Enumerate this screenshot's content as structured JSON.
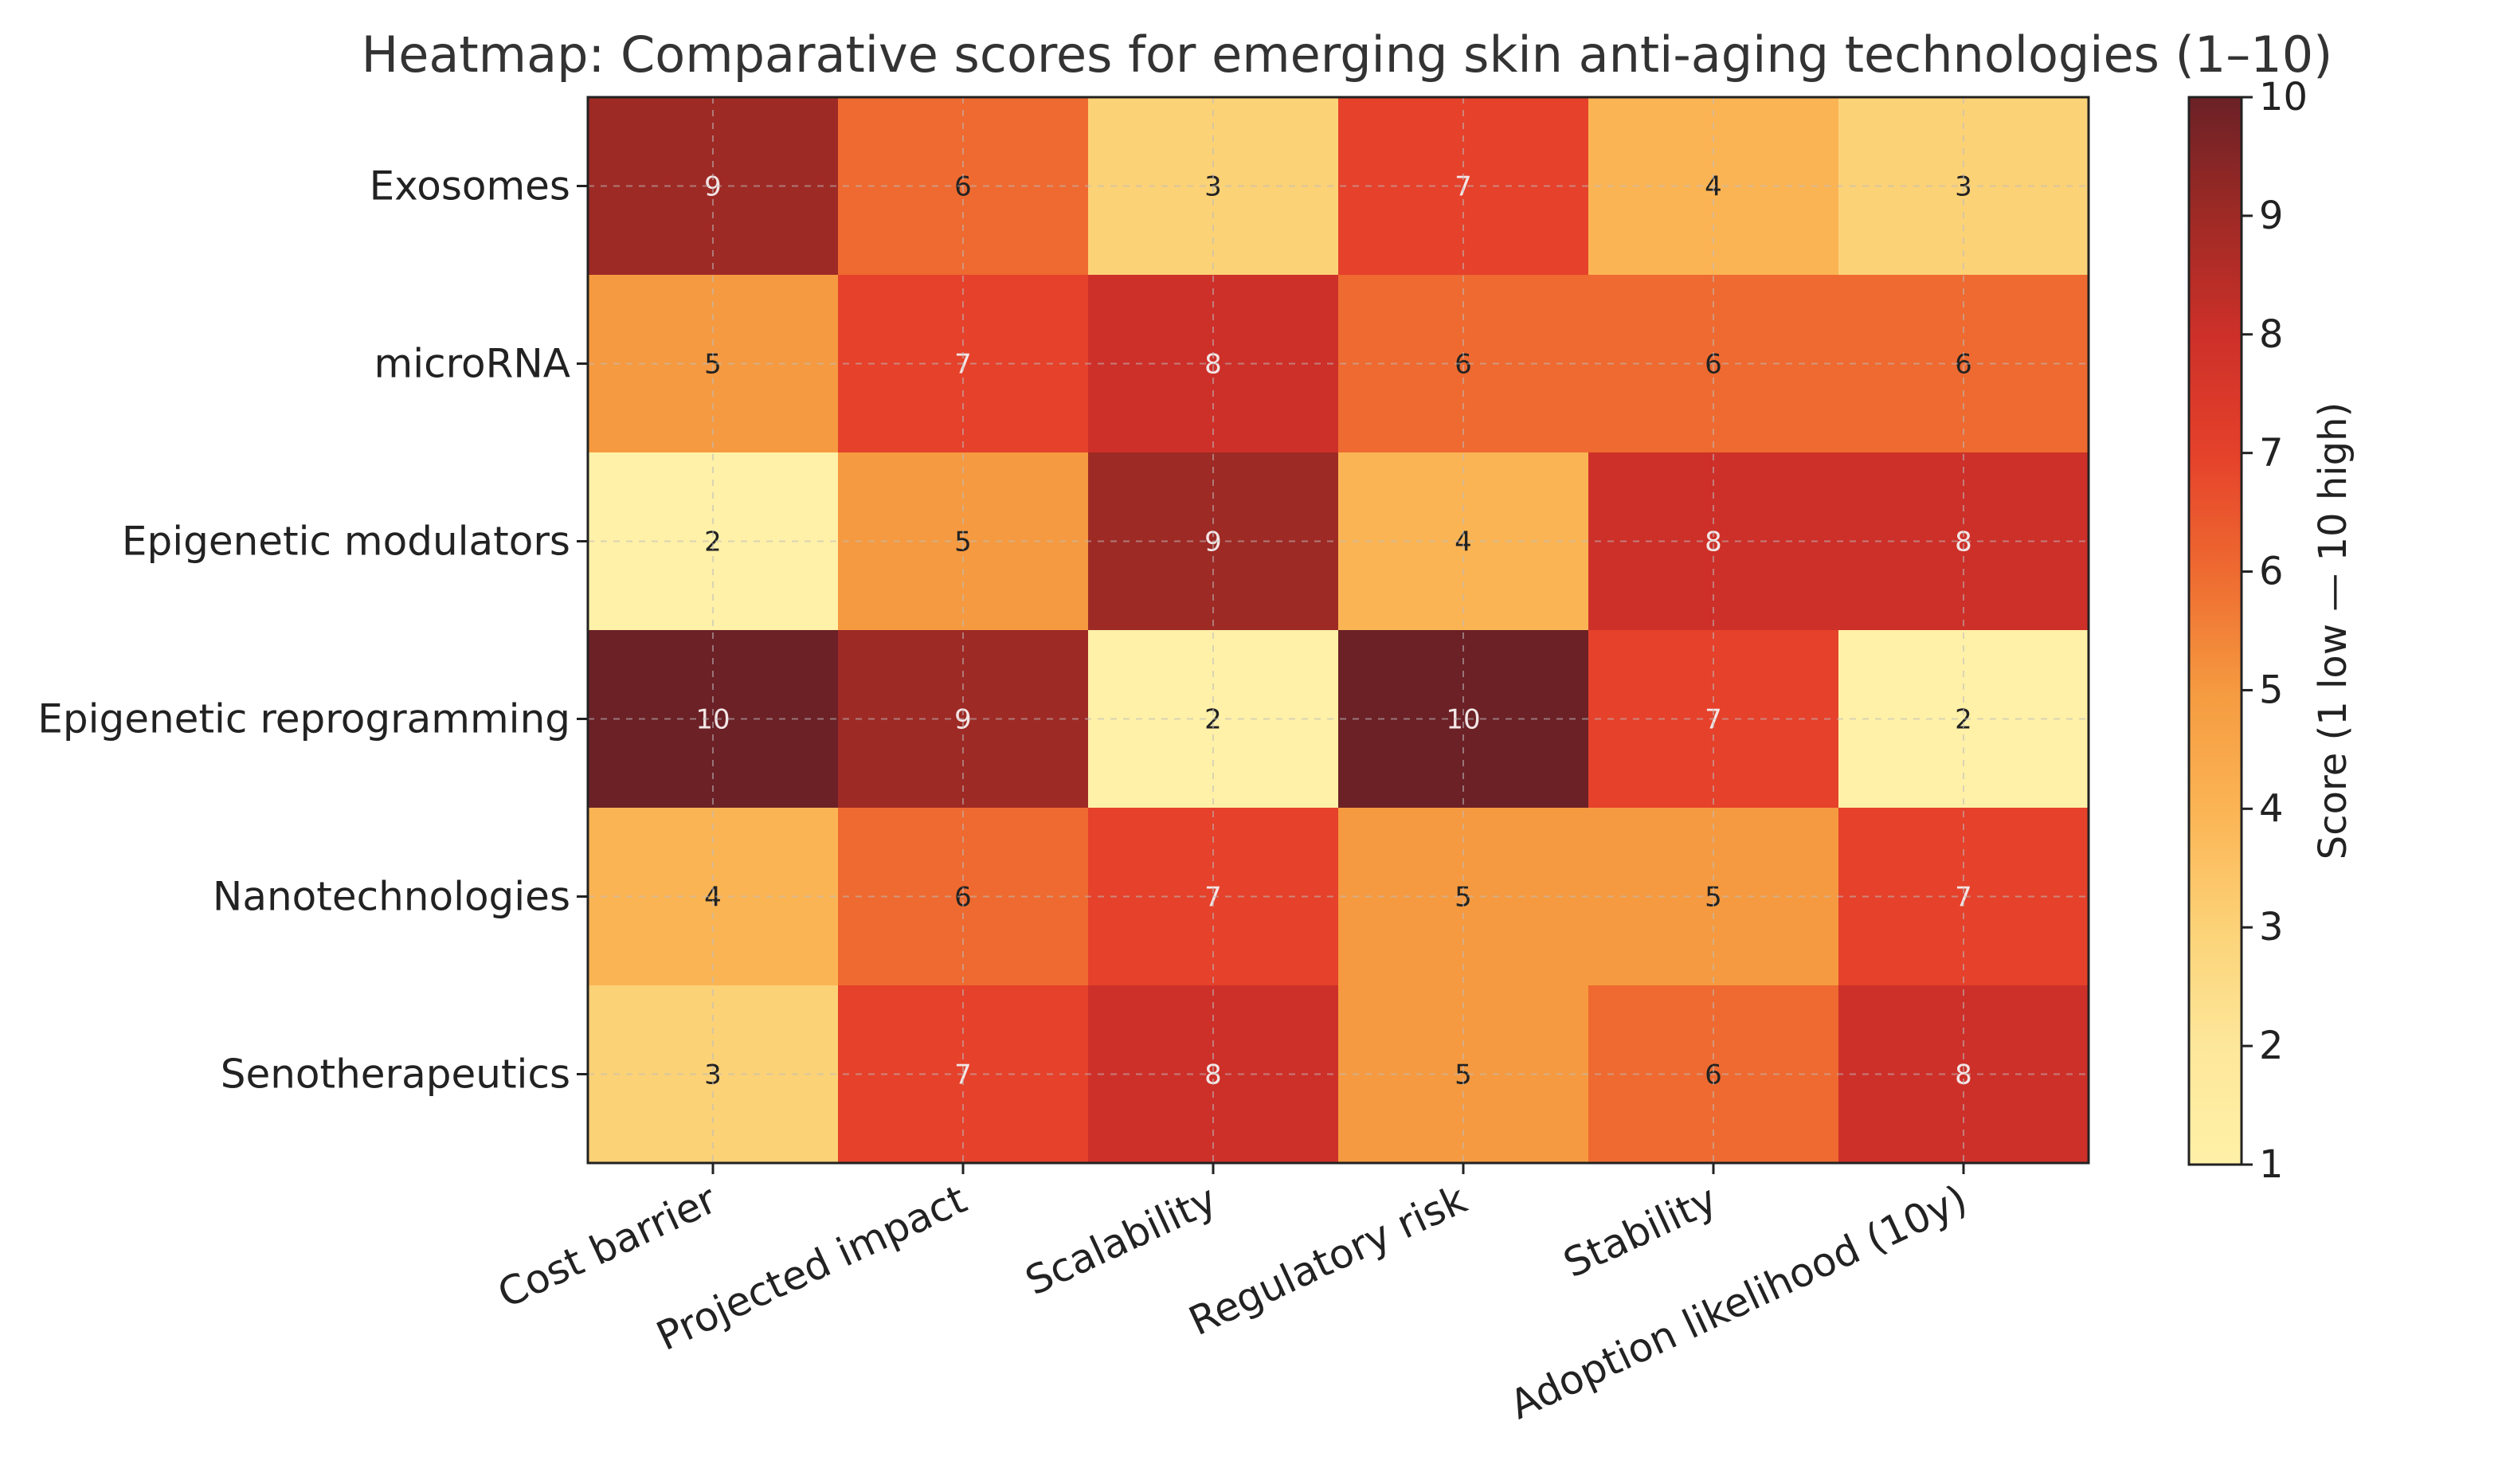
{
  "chart_data": {
    "type": "heatmap",
    "title": "Heatmap: Comparative scores for emerging skin anti-aging technologies (1–10)",
    "rows": [
      "Exosomes",
      "microRNA",
      "Epigenetic modulators",
      "Epigenetic reprogramming",
      "Nanotechnologies",
      "Senotherapeutics"
    ],
    "columns": [
      "Cost barrier",
      "Projected impact",
      "Scalability",
      "Regulatory risk",
      "Stability",
      "Adoption likelihood (10y)"
    ],
    "values": [
      [
        9,
        6,
        3,
        7,
        4,
        3
      ],
      [
        5,
        7,
        8,
        6,
        6,
        6
      ],
      [
        2,
        5,
        9,
        4,
        8,
        8
      ],
      [
        10,
        9,
        2,
        10,
        7,
        2
      ],
      [
        4,
        6,
        7,
        5,
        5,
        7
      ],
      [
        3,
        7,
        8,
        5,
        6,
        8
      ]
    ],
    "colorbar": {
      "label": "Score (1 low — 10 high)",
      "min": 1,
      "max": 10,
      "ticks": [
        1,
        2,
        3,
        4,
        5,
        6,
        7,
        8,
        9,
        10
      ]
    },
    "colormap": "YlOrRd",
    "grid": true
  }
}
